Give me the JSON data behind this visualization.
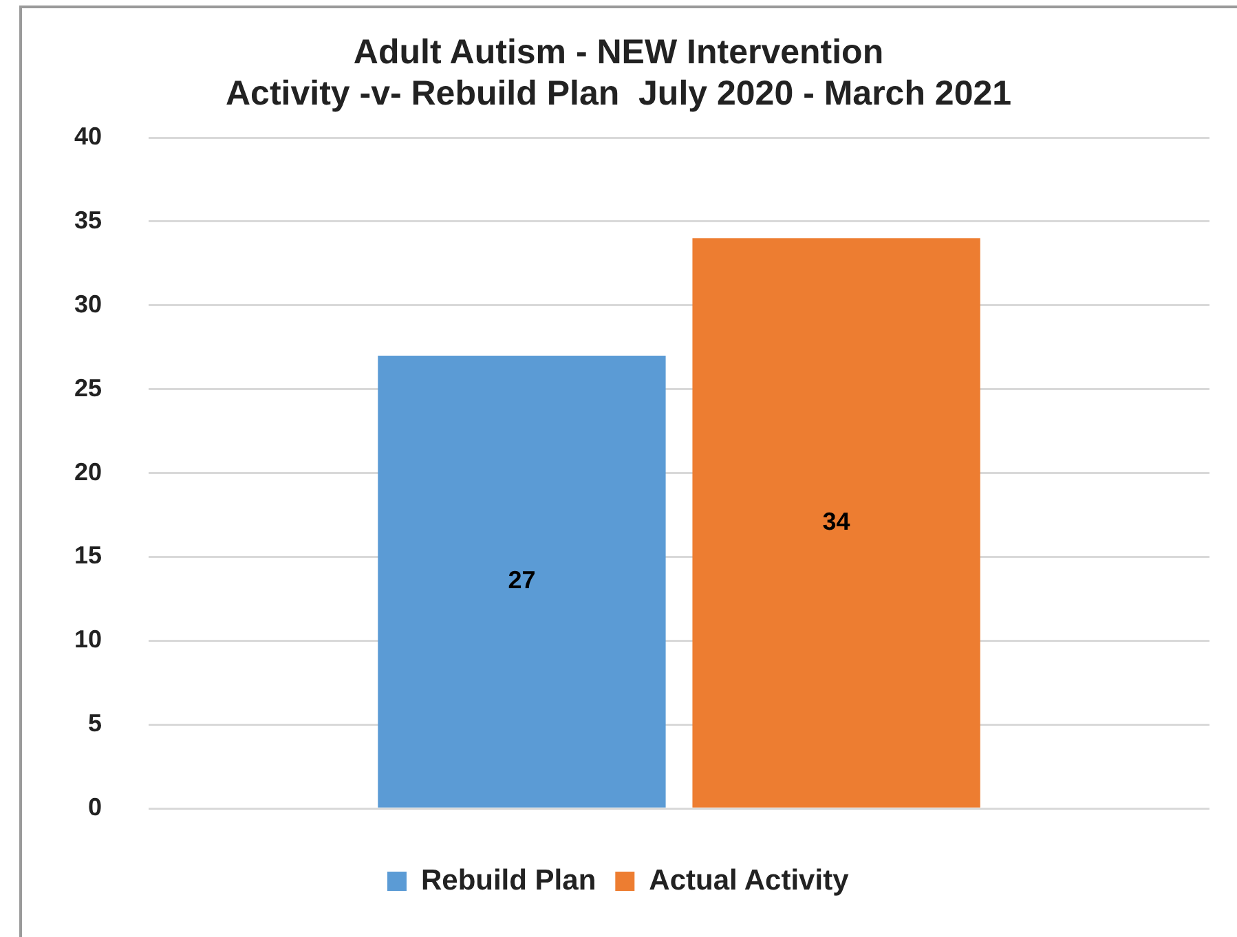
{
  "chart_data": {
    "type": "bar",
    "title": "Adult Autism - NEW Intervention\nActivity -v- Rebuild Plan  July 2020 - March 2021",
    "categories": [
      null
    ],
    "series": [
      {
        "name": "Rebuild Plan",
        "color": "#5b9bd5",
        "values": [
          27
        ]
      },
      {
        "name": "Actual Activity",
        "color": "#ed7d31",
        "values": [
          34
        ]
      }
    ],
    "ylim": [
      0,
      40
    ],
    "yticks": [
      0,
      5,
      10,
      15,
      20,
      25,
      30,
      35,
      40
    ],
    "grid": "y",
    "legend": "bottom",
    "data_labels": true
  }
}
